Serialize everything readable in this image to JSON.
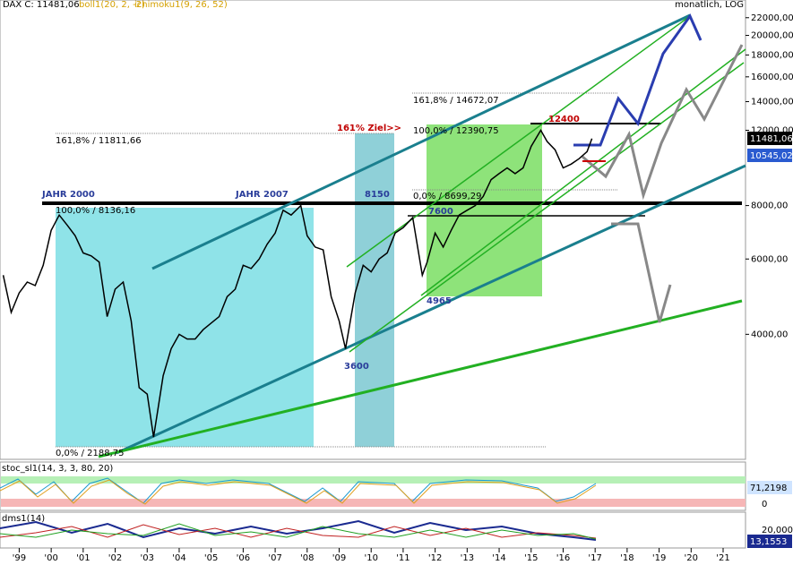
{
  "chart_data": {
    "type": "line",
    "log_scale": true,
    "x": [
      1998.5,
      1998.75,
      1999.0,
      1999.25,
      1999.5,
      1999.75,
      2000.0,
      2000.25,
      2000.5,
      2000.75,
      2001.0,
      2001.25,
      2001.5,
      2001.75,
      2002.0,
      2002.25,
      2002.5,
      2002.75,
      2003.0,
      2003.2,
      2003.5,
      2003.75,
      2004.0,
      2004.25,
      2004.5,
      2004.75,
      2005.0,
      2005.25,
      2005.5,
      2005.75,
      2006.0,
      2006.25,
      2006.5,
      2006.75,
      2007.0,
      2007.25,
      2007.5,
      2007.8,
      2008.0,
      2008.25,
      2008.5,
      2008.75,
      2009.0,
      2009.2,
      2009.5,
      2009.75,
      2010.0,
      2010.25,
      2010.5,
      2010.75,
      2011.0,
      2011.3,
      2011.6,
      2011.75,
      2012.0,
      2012.25,
      2012.5,
      2012.75,
      2013.0,
      2013.25,
      2013.5,
      2013.75,
      2014.0,
      2014.25,
      2014.5,
      2014.75,
      2015.0,
      2015.3,
      2015.5,
      2015.75,
      2016.0,
      2016.25,
      2016.5,
      2016.75,
      2016.9
    ],
    "series": [
      {
        "name": "DAX",
        "color": "#000000",
        "values": [
          5500,
          4500,
          5000,
          5300,
          5200,
          5800,
          7000,
          7600,
          7200,
          6800,
          6200,
          6100,
          5900,
          4400,
          5100,
          5300,
          4300,
          3000,
          2900,
          2300,
          3200,
          3700,
          4000,
          3900,
          3900,
          4100,
          4250,
          4400,
          4900,
          5100,
          5800,
          5700,
          6000,
          6500,
          6900,
          7800,
          7600,
          8000,
          6800,
          6400,
          6300,
          4900,
          4300,
          3700,
          5000,
          5800,
          5600,
          6000,
          6200,
          6900,
          7100,
          7500,
          5500,
          5900,
          6900,
          6400,
          7000,
          7600,
          7800,
          8000,
          8400,
          9200,
          9500,
          9800,
          9500,
          9800,
          11000,
          12000,
          11300,
          10800,
          9800,
          10000,
          10300,
          10700,
          11481
        ]
      }
    ],
    "xlim": [
      1998.4,
      2021.7
    ],
    "xticks": [
      {
        "value": 1999,
        "label": "'99"
      },
      {
        "value": 2000,
        "label": "'00"
      },
      {
        "value": 2001,
        "label": "'01"
      },
      {
        "value": 2002,
        "label": "'02"
      },
      {
        "value": 2003,
        "label": "'03"
      },
      {
        "value": 2004,
        "label": "'04"
      },
      {
        "value": 2005,
        "label": "'05"
      },
      {
        "value": 2006,
        "label": "'06"
      },
      {
        "value": 2007,
        "label": "'07"
      },
      {
        "value": 2008,
        "label": "'08"
      },
      {
        "value": 2009,
        "label": "'09"
      },
      {
        "value": 2010,
        "label": "'10"
      },
      {
        "value": 2011,
        "label": "'11"
      },
      {
        "value": 2012,
        "label": "'12"
      },
      {
        "value": 2013,
        "label": "'13"
      },
      {
        "value": 2014,
        "label": "'14"
      },
      {
        "value": 2015,
        "label": "'15"
      },
      {
        "value": 2016,
        "label": "'16"
      },
      {
        "value": 2017,
        "label": "'17"
      },
      {
        "value": 2018,
        "label": "'18"
      },
      {
        "value": 2019,
        "label": "'19"
      },
      {
        "value": 2020,
        "label": "'20"
      },
      {
        "value": 2021,
        "label": "'21"
      }
    ],
    "ylim": [
      2050,
      24200
    ],
    "yticks": [
      {
        "value": 4000,
        "label": "4000,00"
      },
      {
        "value": 6000,
        "label": "6000,00"
      },
      {
        "value": 8000,
        "label": "8000,00"
      },
      {
        "value": 12000,
        "label": "12000,00"
      },
      {
        "value": 14000,
        "label": "14000,00"
      },
      {
        "value": 16000,
        "label": "16000,00"
      },
      {
        "value": 18000,
        "label": "18000,00"
      },
      {
        "value": 20000,
        "label": "20000,00"
      },
      {
        "value": 22000,
        "label": "22000,00"
      }
    ]
  },
  "header": {
    "symbol": "DAX C: 11481,06",
    "bollinger": "boll1(20, 2, -2)",
    "ichimoku": "ichimoku1(9, 26, 52)",
    "mode": "monatlich, LOG"
  },
  "annotations": {
    "jahr2000": "JAHR 2000",
    "jahr2007": "JAHR 2007",
    "fib100_a": "100,0% / 8136,16",
    "fib0_a": "0,0% / 2188,75",
    "fib161_a": "161,8% / 11811,66",
    "ziel": "161% Ziel>>",
    "l8150": "8150",
    "l3600": "3600",
    "l7600": "7600",
    "l4965": "4965",
    "fib161_b": "161,8% / 14672,07",
    "fib100_b": "100,0% / 12390,75",
    "fib0_b": "0,0% / 8699,29",
    "l12400": "12400"
  },
  "price_tags": {
    "last": "11481,06",
    "band": "10545,02"
  },
  "panels": {
    "stoch_label": "stoc_sl1(14, 3, 3, 80, 20)",
    "stoch_value": "71,2198",
    "stoch_zero": "0",
    "dms_label": "dms1(14)",
    "dms_scale": "20,000",
    "dms_value": "13,1553"
  }
}
